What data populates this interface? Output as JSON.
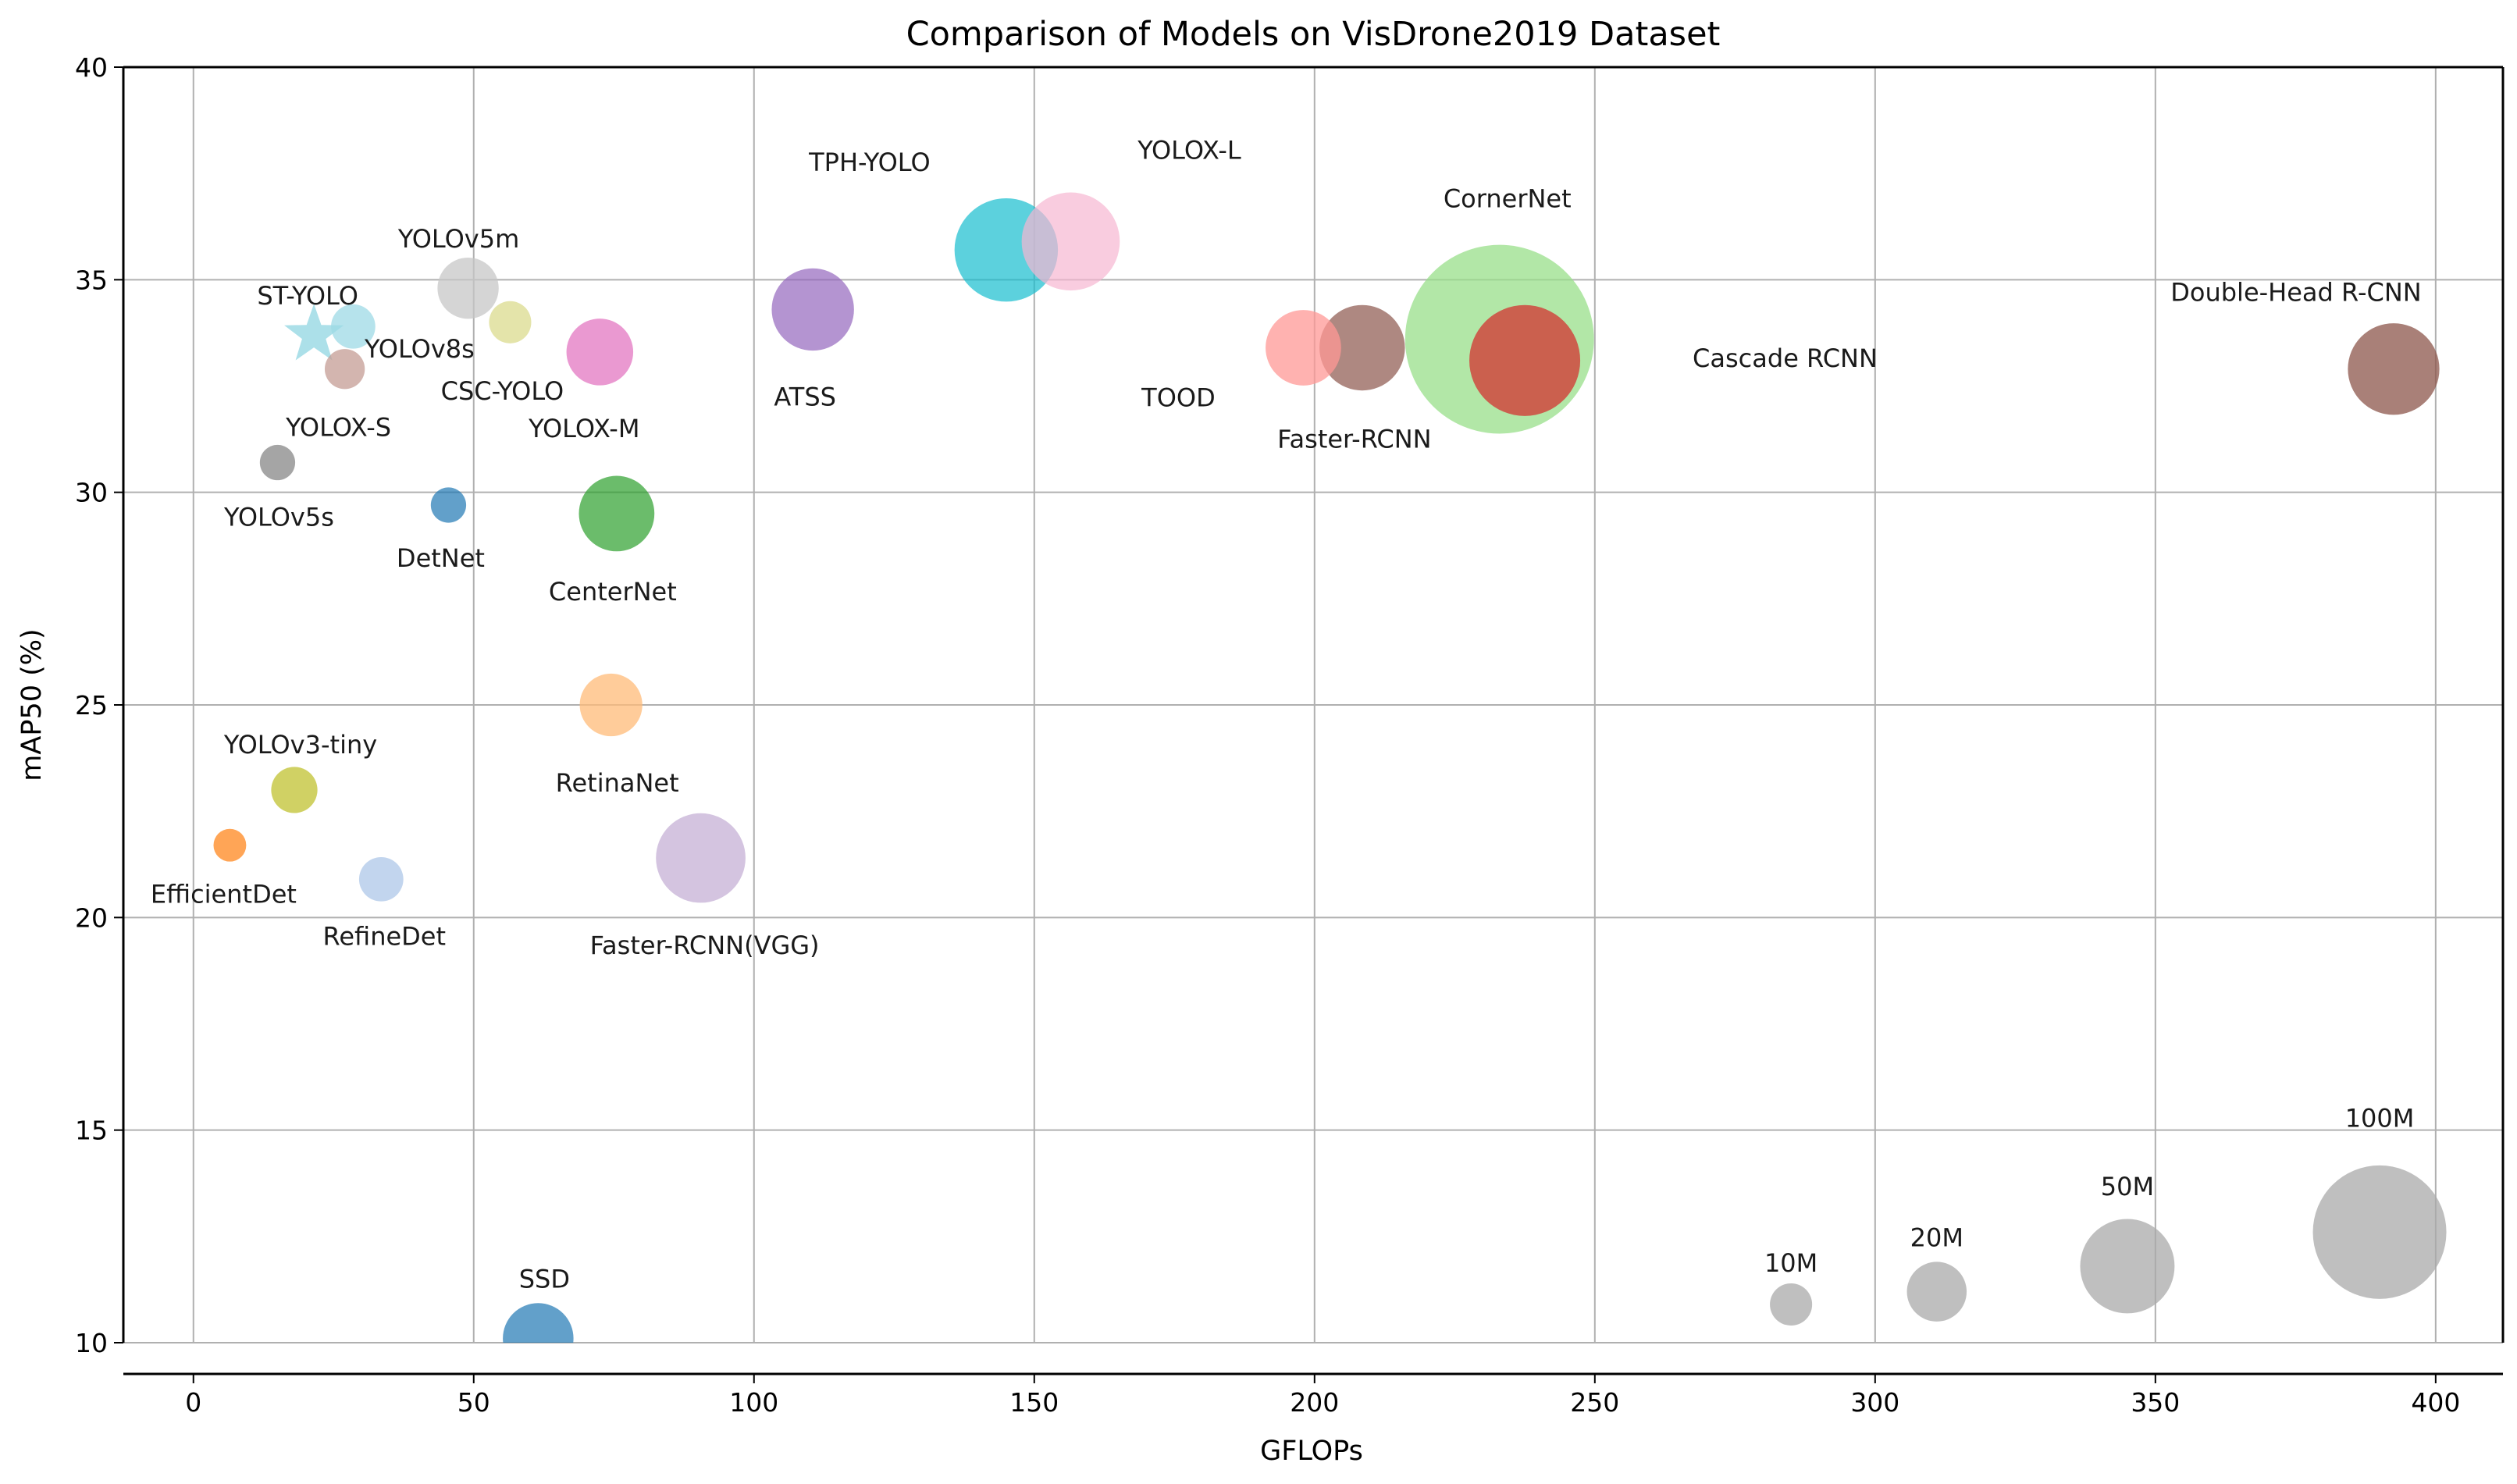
{
  "chart_data": {
    "type": "scatter",
    "title": "Comparison of Models on VisDrone2019 Dataset",
    "xlabel": "GFLOPs",
    "ylabel": "mAP50 (%)",
    "xlim": [
      -12.5,
      412
    ],
    "ylim": [
      10,
      40
    ],
    "xticks": [
      0,
      50,
      100,
      150,
      200,
      250,
      300,
      350,
      400
    ],
    "yticks": [
      10,
      15,
      20,
      25,
      30,
      35,
      40
    ],
    "grid": true,
    "size_encoding": "parameters (M)",
    "points": [
      {
        "name": "CornerNet",
        "label": "CornerNet",
        "x": 233,
        "y": 33.6,
        "params": 200,
        "color": "#98df8a",
        "alpha": 0.75
      },
      {
        "name": "Cascade RCNN",
        "label": "Cascade RCNN",
        "x": 237.5,
        "y": 33.1,
        "params": 69,
        "color": "#d62728",
        "alpha": 0.7
      },
      {
        "name": "Faster-RCNN",
        "label": "Faster-RCNN",
        "x": 208.5,
        "y": 33.4,
        "params": 41,
        "color": "#8c564b",
        "alpha": 0.7
      },
      {
        "name": "TOOD",
        "label": "TOOD",
        "x": 198,
        "y": 33.4,
        "params": 32,
        "color": "#ff9896",
        "alpha": 0.75
      },
      {
        "name": "Double-Head R-CNN",
        "label": "Double-Head R-CNN",
        "x": 392.5,
        "y": 32.9,
        "params": 47,
        "color": "#8c564b",
        "alpha": 0.75
      },
      {
        "name": "TPH-YOLO",
        "label": "TPH-YOLO",
        "x": 145,
        "y": 35.7,
        "params": 60,
        "color": "#17becf",
        "alpha": 0.7
      },
      {
        "name": "YOLOX-L",
        "label": "YOLOX-L",
        "x": 156.5,
        "y": 35.9,
        "params": 54,
        "color": "#f7b6d2",
        "alpha": 0.7
      },
      {
        "name": "ATSS",
        "label": "ATSS",
        "x": 110.5,
        "y": 34.3,
        "params": 38,
        "color": "#9467bd",
        "alpha": 0.7
      },
      {
        "name": "YOLOX-M",
        "label": "YOLOX-M",
        "x": 72.5,
        "y": 33.3,
        "params": 25,
        "color": "#e377c2",
        "alpha": 0.75
      },
      {
        "name": "CSC-YOLO",
        "label": "CSC-YOLO",
        "x": 56.5,
        "y": 34.0,
        "params": 10,
        "color": "#dbdb8d",
        "alpha": 0.75
      },
      {
        "name": "YOLOv5m",
        "label": "YOLOv5m",
        "x": 49,
        "y": 34.8,
        "params": 21,
        "color": "#c7c7c7",
        "alpha": 0.75
      },
      {
        "name": "YOLOv8s",
        "label": "YOLOv8s",
        "x": 28.5,
        "y": 33.9,
        "params": 11,
        "color": "#9edae5",
        "alpha": 0.75
      },
      {
        "name": "ST-YOLO",
        "label": "ST-YOLO",
        "x": 21.5,
        "y": 33.7,
        "params": 9,
        "color": "#9edae5",
        "alpha": 0.85,
        "marker": "star"
      },
      {
        "name": "YOLOX-S",
        "label": "YOLOX-S",
        "x": 27,
        "y": 32.9,
        "params": 9,
        "color": "#c49c94",
        "alpha": 0.75
      },
      {
        "name": "YOLOv5s",
        "label": "YOLOv5s",
        "x": 15,
        "y": 30.7,
        "params": 7,
        "color": "#7f7f7f",
        "alpha": 0.7
      },
      {
        "name": "DetNet",
        "label": "DetNet",
        "x": 45.5,
        "y": 29.7,
        "params": 7,
        "color": "#1f77b4",
        "alpha": 0.7
      },
      {
        "name": "CenterNet",
        "label": "CenterNet",
        "x": 75.5,
        "y": 29.5,
        "params": 32,
        "color": "#2ca02c",
        "alpha": 0.7
      },
      {
        "name": "RetinaNet",
        "label": "RetinaNet",
        "x": 74.5,
        "y": 25.0,
        "params": 22,
        "color": "#ffbb78",
        "alpha": 0.75
      },
      {
        "name": "YOLOv3-tiny",
        "label": "YOLOv3-tiny",
        "x": 18,
        "y": 23.0,
        "params": 12,
        "color": "#bcbd22",
        "alpha": 0.7
      },
      {
        "name": "EfficientDet",
        "label": "EfficientDet",
        "x": 6.5,
        "y": 21.7,
        "params": 6,
        "color": "#ff7f0e",
        "alpha": 0.7
      },
      {
        "name": "RefineDet",
        "label": "RefineDet",
        "x": 33.5,
        "y": 20.9,
        "params": 11,
        "color": "#aec7e8",
        "alpha": 0.75
      },
      {
        "name": "Faster-RCNN(VGG)",
        "label": "Faster-RCNN(VGG)",
        "x": 90.5,
        "y": 21.4,
        "params": 45,
        "color": "#c5b0d5",
        "alpha": 0.75
      },
      {
        "name": "SSD",
        "label": "SSD",
        "x": 61.5,
        "y": 10.1,
        "params": 28,
        "color": "#1f77b4",
        "alpha": 0.7
      }
    ],
    "size_legend": [
      {
        "label": "10M",
        "x": 285,
        "y": 10.9,
        "params": 10,
        "color": "#a9a9a9",
        "alpha": 0.75
      },
      {
        "label": "20M",
        "x": 311,
        "y": 11.2,
        "params": 20,
        "color": "#a9a9a9",
        "alpha": 0.75
      },
      {
        "label": "50M",
        "x": 345,
        "y": 11.8,
        "params": 50,
        "color": "#a9a9a9",
        "alpha": 0.75
      },
      {
        "label": "100M",
        "x": 390,
        "y": 12.6,
        "params": 100,
        "color": "#a9a9a9",
        "alpha": 0.75
      }
    ]
  }
}
